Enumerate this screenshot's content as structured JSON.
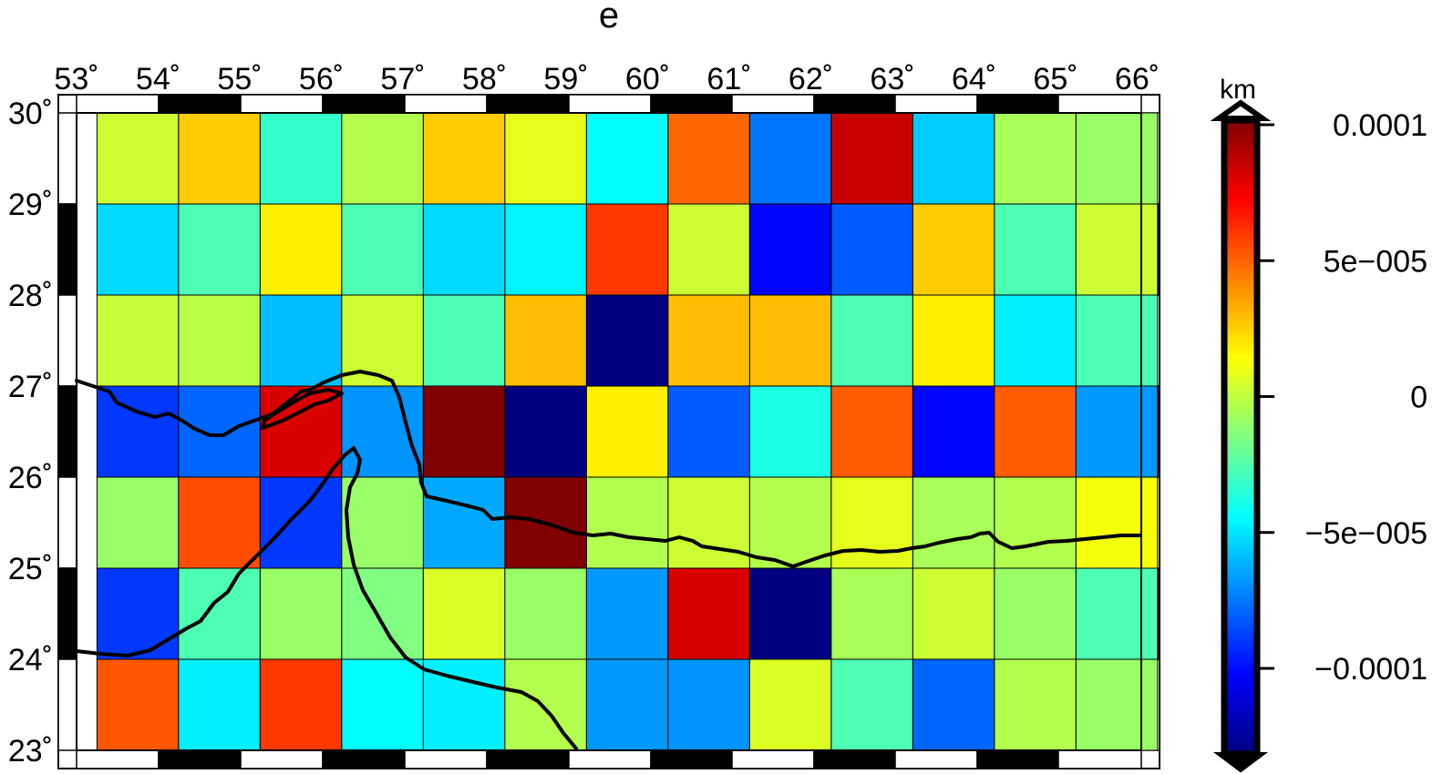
{
  "title": "e",
  "map": {
    "lon_range": [
      53,
      66
    ],
    "lat_range": [
      23,
      30
    ],
    "x_tick_labels": [
      "53˚",
      "54˚",
      "55˚",
      "56˚",
      "57˚",
      "58˚",
      "59˚",
      "60˚",
      "61˚",
      "62˚",
      "63˚",
      "64˚",
      "65˚",
      "66˚"
    ],
    "y_tick_labels": [
      "30˚",
      "29˚",
      "28˚",
      "27˚",
      "26˚",
      "25˚",
      "24˚",
      "23˚"
    ],
    "grid_lon_edges": [
      53.25,
      54.25,
      55.25,
      56.25,
      57.25,
      58.25,
      59.25,
      60.25,
      61.25,
      62.25,
      63.25,
      64.25,
      65.25,
      66.25
    ],
    "grid_lat_edges": [
      30,
      29,
      28,
      27,
      26,
      25,
      24,
      23
    ],
    "cells_row_major_north_to_south": [
      [
        1.5e-05,
        3.5e-05,
        -1.5e-05,
        1e-05,
        3.5e-05,
        2e-05,
        -2.5e-05,
        5.5e-05,
        -5.2e-05,
        8.6e-05,
        -3.5e-05,
        8e-06,
        5e-06
      ],
      [
        -3.2e-05,
        -1e-05,
        2.8e-05,
        -1e-05,
        -3.2e-05,
        -2.7e-05,
        6.4e-05,
        1.5e-05,
        -7.4e-05,
        -5.7e-05,
        3.5e-05,
        -1e-05,
        1.5e-05
      ],
      [
        1.4e-05,
        1.1e-05,
        -3.8e-05,
        1.5e-05,
        -1e-05,
        3.8e-05,
        -0.000107,
        3.8e-05,
        3.8e-05,
        -1e-05,
        2.8e-05,
        -2.8e-05,
        -1e-05
      ],
      [
        -6.4e-05,
        -5.5e-05,
        8.2e-05,
        -4.6e-05,
        0.0001,
        -0.000121,
        2.8e-05,
        -5.7e-05,
        -2e-05,
        5.7e-05,
        -7.4e-05,
        5.7e-05,
        -4.5e-05
      ],
      [
        5e-06,
        6e-05,
        -6.4e-05,
        5e-06,
        -4.2e-05,
        0.0001,
        1e-05,
        1.5e-05,
        1e-05,
        2e-05,
        8e-06,
        1e-05,
        2.3e-05
      ],
      [
        -6.4e-05,
        -1e-05,
        5e-06,
        0.0,
        1.8e-05,
        5e-06,
        -4.5e-05,
        8.2e-05,
        -0.000112,
        8e-06,
        1.5e-05,
        5e-06,
        -1e-05
      ],
      [
        5.8e-05,
        -2.8e-05,
        6.4e-05,
        -2.5e-05,
        -2.8e-05,
        1e-05,
        -4.5e-05,
        -4.6e-05,
        1.8e-05,
        -1e-05,
        -5.5e-05,
        1e-05,
        5e-06
      ]
    ]
  },
  "colorbar": {
    "unit_label": "km",
    "range": [
      -0.0001,
      0.0001
    ],
    "palette": [
      "#000080",
      "#0000ff",
      "#0080ff",
      "#00ffff",
      "#80ff80",
      "#ffff00",
      "#ff8000",
      "#ff0000",
      "#800000"
    ],
    "tick_labels": [
      "0.0001",
      "5e−005",
      "0",
      "−5e−005",
      "−0.0001"
    ],
    "tick_values": [
      0.0001,
      5e-05,
      0,
      -5e-05,
      -0.0001
    ],
    "triangles": "both-ends"
  },
  "coastline_color": "#000000"
}
